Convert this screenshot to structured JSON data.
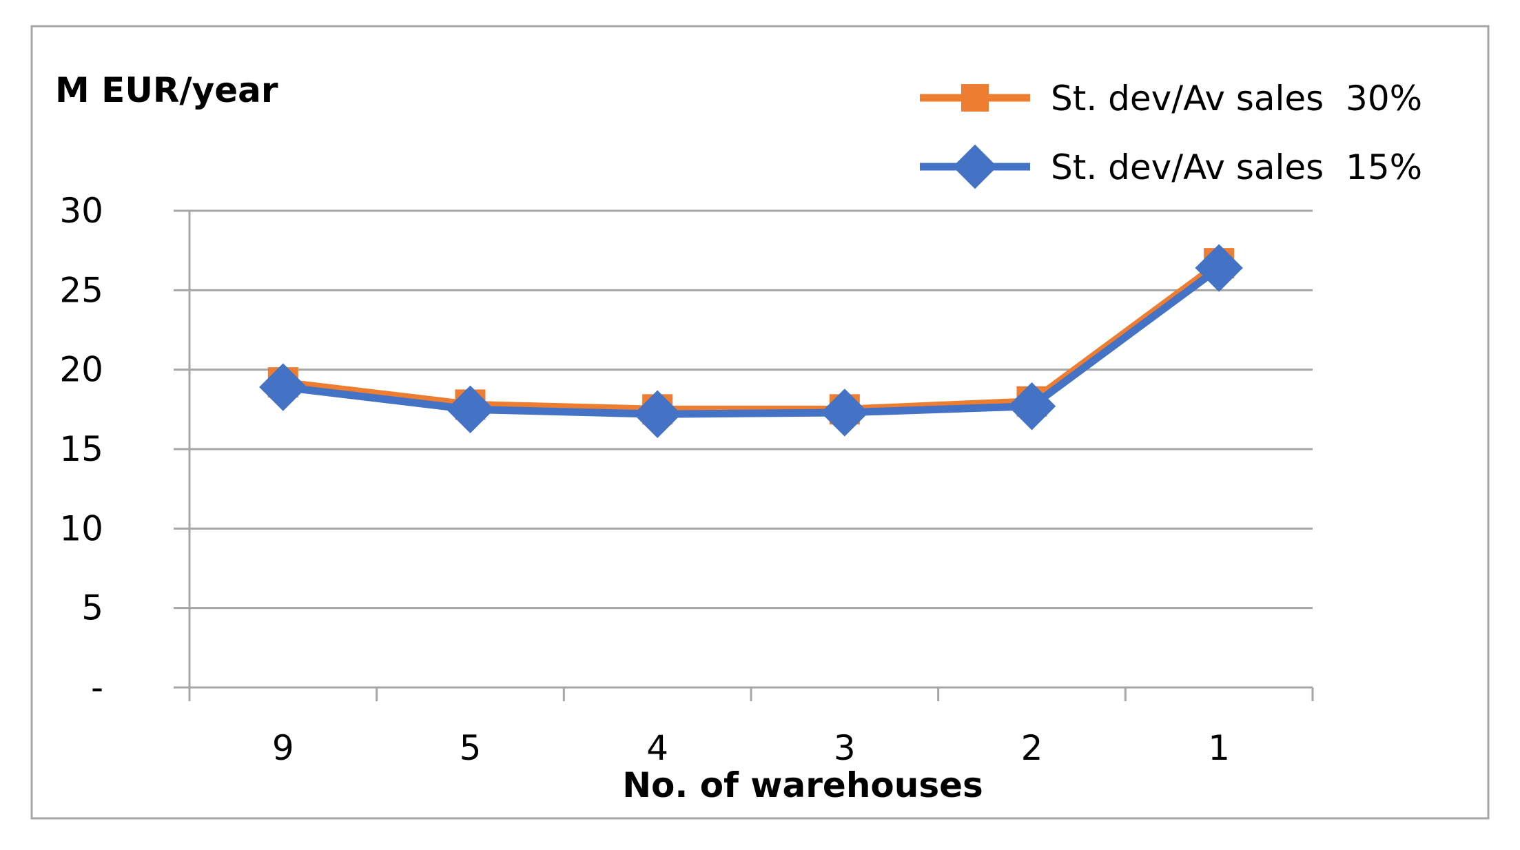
{
  "chart_data": {
    "type": "line",
    "title": "",
    "ylabel": "M EUR/year",
    "xlabel": "No. of warehouses",
    "categories": [
      "9",
      "5",
      "4",
      "3",
      "2",
      "1"
    ],
    "ylim": [
      0,
      30
    ],
    "yticks": [
      0,
      5,
      10,
      15,
      20,
      25,
      30
    ],
    "ytick_labels": [
      "-",
      "5",
      "10",
      "15",
      "20",
      "25",
      "30"
    ],
    "grid": true,
    "legend_position": "top-right",
    "series": [
      {
        "name": "St. dev/Av sales  30%",
        "color": "#ED7D31",
        "marker": "square",
        "values": [
          19.2,
          17.8,
          17.5,
          17.5,
          18.0,
          26.7
        ]
      },
      {
        "name": "St. dev/Av sales  15%",
        "color": "#4472C4",
        "marker": "diamond",
        "values": [
          18.9,
          17.5,
          17.2,
          17.3,
          17.7,
          26.4
        ]
      }
    ]
  }
}
